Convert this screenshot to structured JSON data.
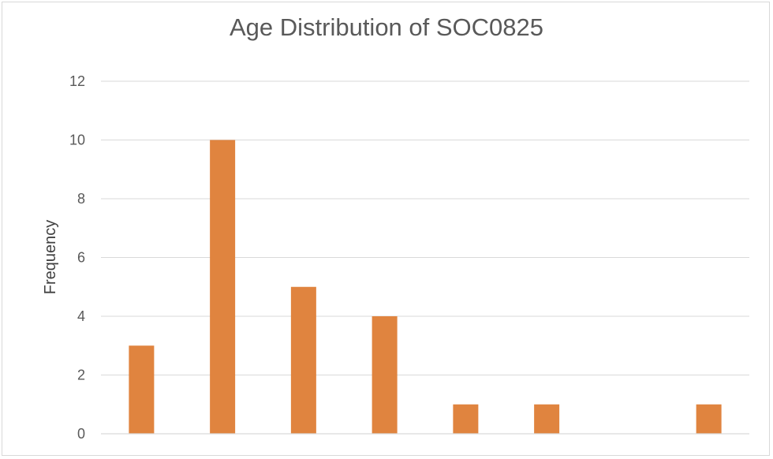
{
  "chart_data": {
    "type": "bar",
    "title": "Age Distribution of SOC0825",
    "xlabel": "",
    "ylabel": "Frequency",
    "categories": [
      "",
      "",
      "",
      "",
      "",
      "",
      "",
      ""
    ],
    "values": [
      3,
      10,
      5,
      4,
      1,
      1,
      0,
      1
    ],
    "ylim": [
      0,
      12
    ],
    "yticks": [
      0,
      2,
      4,
      6,
      8,
      10,
      12
    ],
    "grid": true,
    "legend": "none",
    "bar_color": "#e0843f"
  }
}
